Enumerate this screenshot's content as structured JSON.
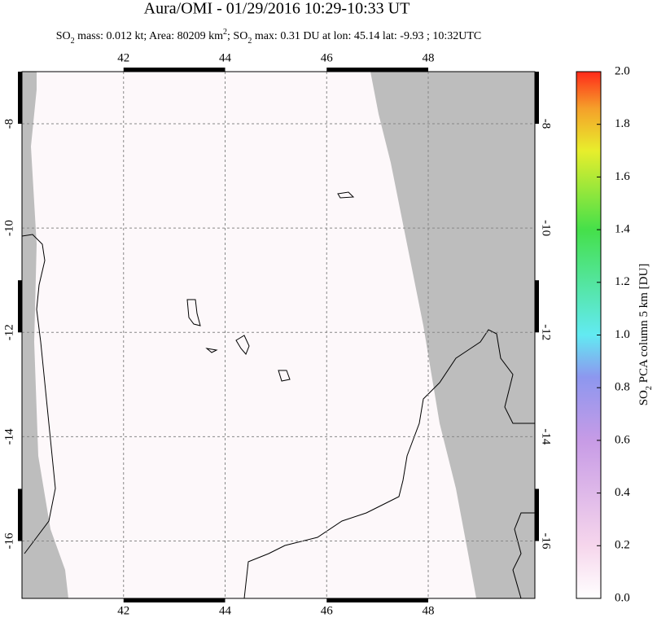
{
  "chart_data": {
    "type": "map",
    "title": "Aura/OMI - 01/29/2016 10:29-10:33 UT",
    "subtitle": [
      "SO",
      "2",
      " mass: 0.012 kt; Area: 80209 km",
      "2",
      "; SO",
      "2",
      " max: 0.31 DU at lon: 45.14 lat: -9.93 ; 10:32UTC"
    ],
    "xlim": [
      40,
      50.1
    ],
    "ylim": [
      -17.1,
      -7
    ],
    "xticks": [
      42,
      44,
      46,
      48
    ],
    "yticks": [
      -8,
      -10,
      -12,
      -14,
      -16
    ],
    "grid": true,
    "colorbar": {
      "lim": [
        0,
        2
      ],
      "ticks": [
        {
          "value": 0,
          "label": "0.0"
        },
        0.2,
        0.4,
        0.6,
        0.8,
        {
          "value": 1,
          "label": "1.0"
        },
        1.2,
        1.4,
        1.6,
        1.8,
        {
          "value": 2,
          "label": "2.0"
        }
      ],
      "label": [
        "SO",
        "2",
        " PCA column 5 km [DU]"
      ]
    }
  }
}
